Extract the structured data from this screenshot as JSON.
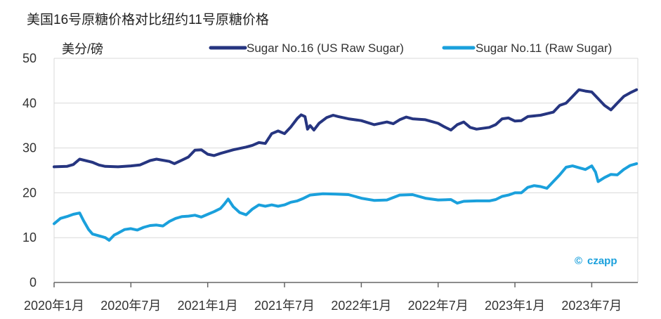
{
  "chart_data": {
    "type": "line",
    "title": "美国16号原糖价格对比纽约11号原糖价格",
    "ylabel": "美分/磅",
    "xlabel": "",
    "ylim": [
      0,
      50
    ],
    "yticks": [
      0,
      10,
      20,
      30,
      40,
      50
    ],
    "xlim": [
      0,
      45
    ],
    "xticks": [
      {
        "month": 0,
        "label": "2020年1月"
      },
      {
        "month": 6,
        "label": "2020年7月"
      },
      {
        "month": 12,
        "label": "2021年1月"
      },
      {
        "month": 18,
        "label": "2021年7月"
      },
      {
        "month": 24,
        "label": "2022年1月"
      },
      {
        "month": 30,
        "label": "2022年7月"
      },
      {
        "month": 36,
        "label": "2023年1月"
      },
      {
        "month": 42,
        "label": "2023年7月"
      }
    ],
    "grid": true,
    "legend_position": "top-right",
    "series": [
      {
        "name": "Sugar No.16 (US Raw Sugar)",
        "color": "#263580",
        "points": [
          [
            0,
            25.8
          ],
          [
            1,
            25.9
          ],
          [
            1.5,
            26.3
          ],
          [
            2,
            27.5
          ],
          [
            3,
            26.8
          ],
          [
            3.5,
            26.2
          ],
          [
            4,
            25.9
          ],
          [
            5,
            25.8
          ],
          [
            6,
            26.0
          ],
          [
            6.7,
            26.2
          ],
          [
            7.5,
            27.2
          ],
          [
            8,
            27.5
          ],
          [
            9,
            27.0
          ],
          [
            9.4,
            26.5
          ],
          [
            10,
            27.3
          ],
          [
            10.5,
            28.0
          ],
          [
            11,
            29.5
          ],
          [
            11.5,
            29.6
          ],
          [
            12,
            28.6
          ],
          [
            12.5,
            28.3
          ],
          [
            13,
            28.8
          ],
          [
            14,
            29.6
          ],
          [
            15,
            30.2
          ],
          [
            15.5,
            30.6
          ],
          [
            16,
            31.2
          ],
          [
            16.5,
            31.0
          ],
          [
            17,
            33.2
          ],
          [
            17.5,
            33.8
          ],
          [
            18,
            33.2
          ],
          [
            18.5,
            34.7
          ],
          [
            19,
            36.6
          ],
          [
            19.3,
            37.4
          ],
          [
            19.6,
            37.0
          ],
          [
            19.8,
            34.2
          ],
          [
            20,
            35.0
          ],
          [
            20.3,
            34.0
          ],
          [
            20.7,
            35.5
          ],
          [
            21.3,
            36.8
          ],
          [
            21.8,
            37.3
          ],
          [
            22.2,
            37.0
          ],
          [
            23,
            36.5
          ],
          [
            24,
            36.1
          ],
          [
            25,
            35.2
          ],
          [
            26,
            35.8
          ],
          [
            26.5,
            35.4
          ],
          [
            27,
            36.3
          ],
          [
            27.5,
            36.9
          ],
          [
            28,
            36.5
          ],
          [
            29,
            36.3
          ],
          [
            30,
            35.5
          ],
          [
            30.5,
            34.7
          ],
          [
            31,
            34.0
          ],
          [
            31.5,
            35.2
          ],
          [
            32,
            35.8
          ],
          [
            32.5,
            34.6
          ],
          [
            33,
            34.2
          ],
          [
            34,
            34.6
          ],
          [
            34.5,
            35.2
          ],
          [
            35,
            36.5
          ],
          [
            35.5,
            36.7
          ],
          [
            36,
            36.0
          ],
          [
            36.5,
            36.1
          ],
          [
            37,
            37.0
          ],
          [
            38,
            37.3
          ],
          [
            39,
            38.0
          ],
          [
            39.5,
            39.5
          ],
          [
            40,
            40.0
          ],
          [
            40.5,
            41.5
          ],
          [
            41,
            43.0
          ],
          [
            41.5,
            42.7
          ],
          [
            42,
            42.5
          ],
          [
            42.5,
            41.0
          ],
          [
            43,
            39.5
          ],
          [
            43.5,
            38.5
          ],
          [
            44,
            40.0
          ],
          [
            44.5,
            41.5
          ],
          [
            45,
            42.3
          ],
          [
            45.5,
            43.0
          ]
        ]
      },
      {
        "name": "Sugar No.11 (Raw Sugar)",
        "color": "#1aa0dc",
        "points": [
          [
            0,
            13.1
          ],
          [
            0.5,
            14.3
          ],
          [
            1,
            14.7
          ],
          [
            1.5,
            15.2
          ],
          [
            2,
            15.5
          ],
          [
            2.3,
            13.8
          ],
          [
            2.7,
            11.8
          ],
          [
            3,
            10.8
          ],
          [
            3.5,
            10.4
          ],
          [
            4,
            10.0
          ],
          [
            4.3,
            9.4
          ],
          [
            4.7,
            10.6
          ],
          [
            5,
            11.0
          ],
          [
            5.5,
            11.8
          ],
          [
            6,
            12.0
          ],
          [
            6.5,
            11.7
          ],
          [
            7,
            12.3
          ],
          [
            7.5,
            12.7
          ],
          [
            8,
            12.8
          ],
          [
            8.5,
            12.6
          ],
          [
            9,
            13.6
          ],
          [
            9.5,
            14.3
          ],
          [
            10,
            14.7
          ],
          [
            10.5,
            14.8
          ],
          [
            11,
            15.0
          ],
          [
            11.5,
            14.6
          ],
          [
            12,
            15.2
          ],
          [
            12.5,
            15.8
          ],
          [
            13,
            16.5
          ],
          [
            13.3,
            17.5
          ],
          [
            13.6,
            18.6
          ],
          [
            14,
            16.9
          ],
          [
            14.5,
            15.6
          ],
          [
            15,
            15.1
          ],
          [
            15.5,
            16.4
          ],
          [
            16,
            17.3
          ],
          [
            16.5,
            17.0
          ],
          [
            17,
            17.3
          ],
          [
            17.5,
            17.0
          ],
          [
            18,
            17.3
          ],
          [
            18.5,
            17.9
          ],
          [
            19,
            18.2
          ],
          [
            19.5,
            18.8
          ],
          [
            20,
            19.5
          ],
          [
            21,
            19.8
          ],
          [
            22,
            19.7
          ],
          [
            23,
            19.6
          ],
          [
            23.5,
            19.2
          ],
          [
            24,
            18.8
          ],
          [
            25,
            18.3
          ],
          [
            26,
            18.4
          ],
          [
            27,
            19.5
          ],
          [
            28,
            19.6
          ],
          [
            29,
            18.8
          ],
          [
            30,
            18.4
          ],
          [
            31,
            18.5
          ],
          [
            31.5,
            17.7
          ],
          [
            32,
            18.1
          ],
          [
            33,
            18.2
          ],
          [
            34,
            18.2
          ],
          [
            34.5,
            18.5
          ],
          [
            35,
            19.2
          ],
          [
            35.5,
            19.5
          ],
          [
            36,
            20.0
          ],
          [
            36.5,
            20.0
          ],
          [
            37,
            21.2
          ],
          [
            37.5,
            21.6
          ],
          [
            38,
            21.4
          ],
          [
            38.5,
            21.0
          ],
          [
            39,
            22.5
          ],
          [
            39.5,
            24.0
          ],
          [
            40,
            25.7
          ],
          [
            40.5,
            26.0
          ],
          [
            41,
            25.6
          ],
          [
            41.5,
            25.2
          ],
          [
            42,
            26.0
          ],
          [
            42.3,
            24.6
          ],
          [
            42.5,
            22.5
          ],
          [
            43,
            23.4
          ],
          [
            43.5,
            24.1
          ],
          [
            44,
            24.0
          ],
          [
            44.5,
            25.2
          ],
          [
            45,
            26.1
          ],
          [
            45.5,
            26.5
          ]
        ]
      }
    ],
    "watermark": {
      "symbol": "©",
      "text": "czapp"
    },
    "colors": {
      "grid": "#d9d9d9",
      "axis": "#666666",
      "brand": "#1aa0dc"
    }
  }
}
